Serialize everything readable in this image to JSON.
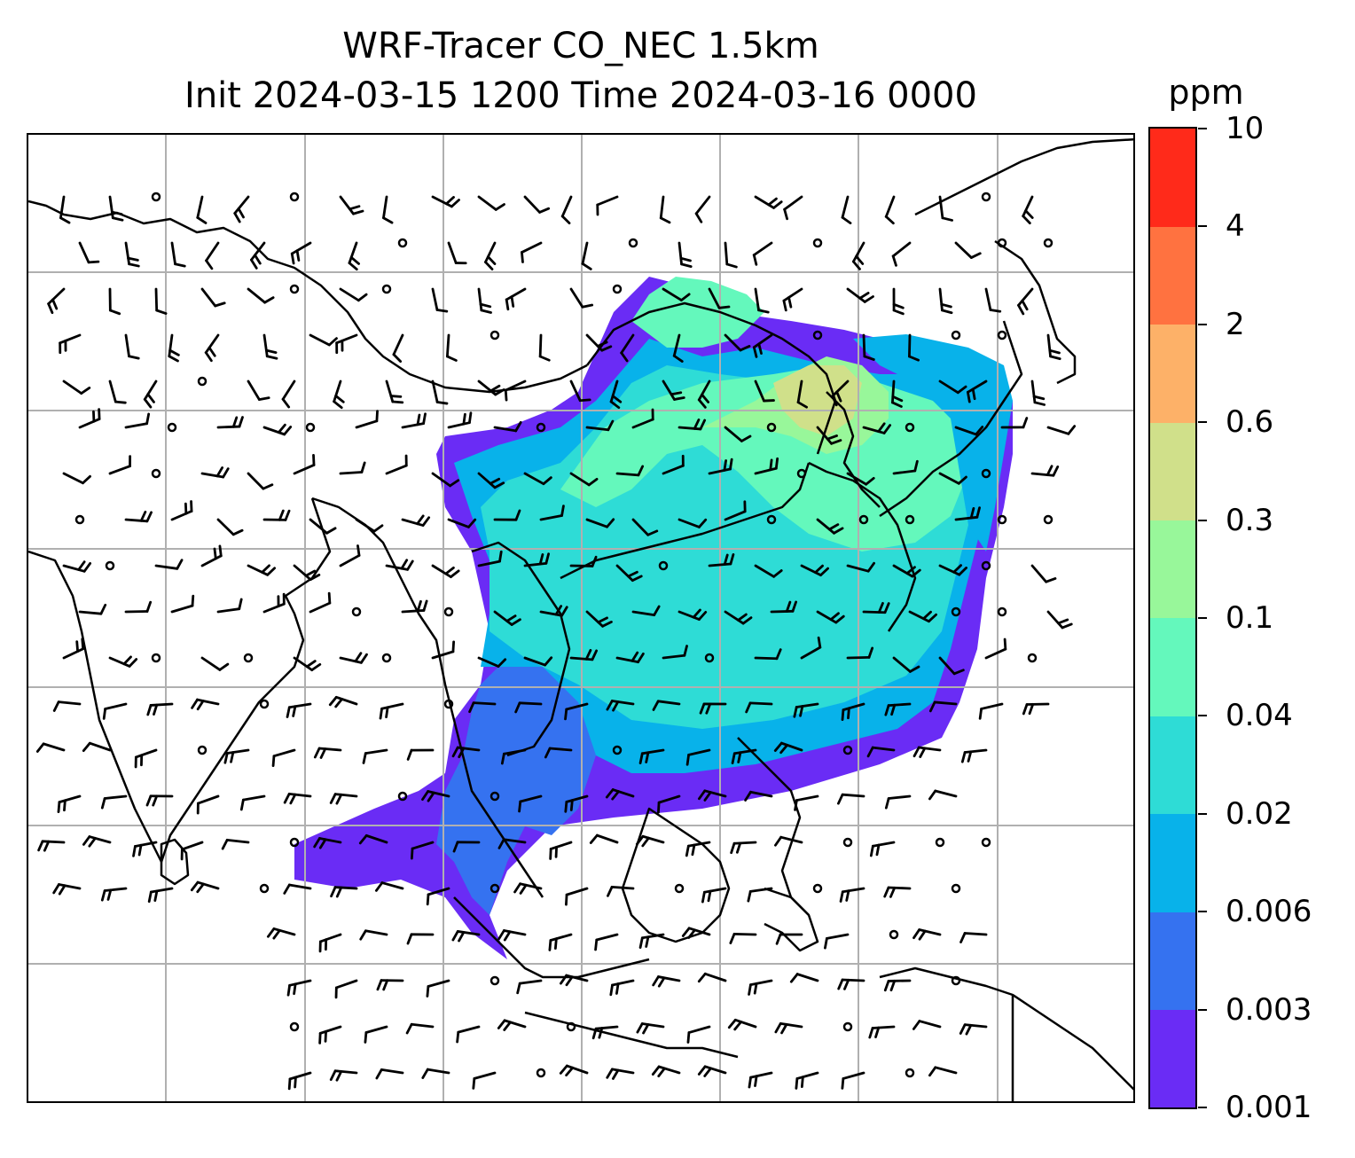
{
  "title": {
    "line1": "WRF-Tracer CO_NEC 1.5km",
    "line2": "Init 2024-03-15 1200 Time 2024-03-16 0000"
  },
  "colorbar": {
    "unit": "ppm",
    "levels": [
      "0.001",
      "0.003",
      "0.006",
      "0.02",
      "0.04",
      "0.1",
      "0.3",
      "0.6",
      "2",
      "4",
      "10"
    ],
    "colors": [
      "#6a2cf5",
      "#3572f0",
      "#08b2ea",
      "#2edcd6",
      "#64f8bc",
      "#98f79a",
      "#d0e08a",
      "#fdb168",
      "#ff7240",
      "#ff2a1a"
    ]
  },
  "map": {
    "gridlines": true,
    "coastline_color": "#000000",
    "grid_color": "#b0b0b0",
    "wind_barbs": true,
    "plume_colors": {
      "edge": "#6a2cf5",
      "low": "#3572f0",
      "mid_low": "#08b2ea",
      "mid": "#2edcd6",
      "mid_high": "#64f8bc",
      "high": "#98f79a",
      "peak": "#d0e08a"
    }
  }
}
